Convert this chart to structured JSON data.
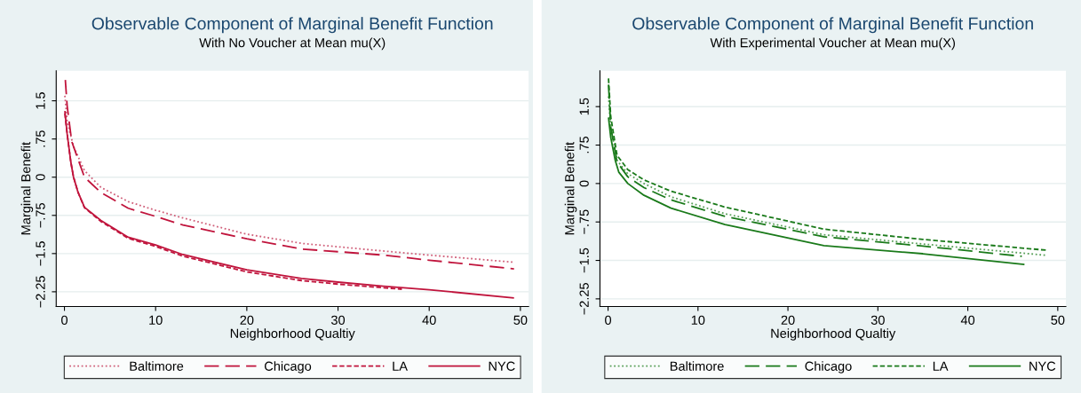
{
  "chart_data": [
    {
      "type": "line",
      "title": "Observable Component of Marginal Benefit Function",
      "subtitle": "With No Voucher at Mean mu(X)",
      "xlabel": "Neighborhood Qualtiy",
      "ylabel": "Marginal Benefit",
      "xlim": [
        -0.9,
        50.9
      ],
      "ylim": [
        -2.54,
        2.09
      ],
      "xticks": [
        0,
        10,
        20,
        30,
        40,
        50
      ],
      "yticks": [
        {
          "value": 1.5,
          "label": "1.5"
        },
        {
          "value": 0.75,
          "label": ".75"
        },
        {
          "value": 0,
          "label": "0"
        },
        {
          "value": -0.75,
          "label": "−.75"
        },
        {
          "value": -1.5,
          "label": "−1.5"
        },
        {
          "value": -2.25,
          "label": "−2.25"
        }
      ],
      "grid": "y",
      "legend": "bottom",
      "marker": "none",
      "series": [
        {
          "name": "Baltimore",
          "color": "#d0607a",
          "line_style": "dotted",
          "x": [
            0.05,
            0.3,
            1,
            2.2,
            4,
            7,
            10,
            13,
            20,
            26,
            35,
            40,
            49.3
          ],
          "values": [
            1.6,
            1.1,
            0.6,
            0.13,
            -0.2,
            -0.48,
            -0.65,
            -0.8,
            -1.12,
            -1.3,
            -1.45,
            -1.53,
            -1.67
          ]
        },
        {
          "name": "Chicago",
          "color": "#c0143c",
          "line_style": "dashed",
          "x": [
            0.1,
            0.3,
            0.8,
            2.2,
            4,
            7,
            10,
            13,
            20,
            26,
            35,
            40,
            49.3
          ],
          "values": [
            1.91,
            1.4,
            0.7,
            0,
            -0.3,
            -0.61,
            -0.77,
            -0.94,
            -1.21,
            -1.41,
            -1.53,
            -1.63,
            -1.8
          ]
        },
        {
          "name": "LA",
          "color": "#c0143c",
          "line_style": "densely dashed",
          "x": [
            0.05,
            0.3,
            0.7,
            1,
            1.5,
            2.2,
            4,
            7,
            10,
            13,
            20,
            26,
            30,
            37
          ],
          "values": [
            1.25,
            0.85,
            0.3,
            0,
            -0.3,
            -0.6,
            -0.87,
            -1.2,
            -1.36,
            -1.55,
            -1.86,
            -2.03,
            -2.1,
            -2.2
          ]
        },
        {
          "name": "NYC",
          "color": "#c0143c",
          "line_style": "solid",
          "x": [
            0.05,
            0.3,
            0.7,
            1,
            1.5,
            2.2,
            4,
            7,
            10,
            13,
            20,
            26,
            30,
            35,
            40,
            49.3
          ],
          "values": [
            1.3,
            0.85,
            0.3,
            0,
            -0.3,
            -0.59,
            -0.85,
            -1.18,
            -1.33,
            -1.52,
            -1.82,
            -1.99,
            -2.06,
            -2.14,
            -2.21,
            -2.37
          ]
        }
      ]
    },
    {
      "type": "line",
      "title": "Observable Component of Marginal Benefit Function",
      "subtitle": "With Experimental Voucher at Mean mu(X)",
      "xlabel": "Neighborhood Qualtiy",
      "ylabel": "Marginal Benefit",
      "xlim": [
        -0.9,
        50.9
      ],
      "ylim": [
        -2.4,
        2.2
      ],
      "xticks": [
        0,
        10,
        20,
        30,
        40,
        50
      ],
      "yticks": [
        {
          "value": 1.5,
          "label": "1.5"
        },
        {
          "value": 0.75,
          "label": ".75"
        },
        {
          "value": 0,
          "label": "0"
        },
        {
          "value": -0.75,
          "label": "−.75"
        },
        {
          "value": -1.5,
          "label": "−1.5"
        },
        {
          "value": -2.25,
          "label": "−2.25"
        }
      ],
      "grid": "y",
      "legend": "bottom",
      "marker": "none",
      "series": [
        {
          "name": "Baltimore",
          "color": "#5aa05a",
          "line_style": "dotted",
          "x": [
            0.05,
            0.3,
            1,
            2.2,
            4,
            7,
            13,
            24,
            35,
            48.7
          ],
          "values": [
            1.7,
            1.1,
            0.45,
            0.19,
            0,
            -0.26,
            -0.59,
            -1.0,
            -1.18,
            -1.4
          ]
        },
        {
          "name": "Chicago",
          "color": "#1a7a1a",
          "line_style": "dashed",
          "x": [
            0.05,
            0.3,
            1,
            2.2,
            4,
            7,
            13,
            24,
            35,
            46
          ],
          "values": [
            1.93,
            1.1,
            0.42,
            0.13,
            -0.08,
            -0.32,
            -0.64,
            -1.04,
            -1.22,
            -1.42
          ]
        },
        {
          "name": "LA",
          "color": "#1a7a1a",
          "line_style": "densely dashed",
          "x": [
            0.05,
            0.3,
            1,
            2.2,
            4,
            7,
            13,
            24,
            35,
            48.7
          ],
          "values": [
            2.05,
            1.3,
            0.55,
            0.27,
            0.07,
            -0.15,
            -0.46,
            -0.89,
            -1.09,
            -1.3
          ]
        },
        {
          "name": "NYC",
          "color": "#1a7a1a",
          "line_style": "solid",
          "x": [
            0.05,
            0.3,
            0.8,
            1.2,
            2.2,
            4,
            7,
            13,
            24,
            35,
            46.3
          ],
          "values": [
            1.29,
            0.9,
            0.45,
            0.22,
            0,
            -0.23,
            -0.48,
            -0.8,
            -1.21,
            -1.37,
            -1.58
          ]
        }
      ]
    }
  ]
}
